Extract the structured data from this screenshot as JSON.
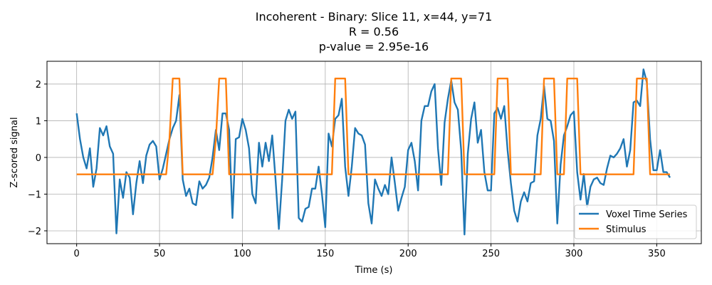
{
  "chart_data": {
    "type": "line",
    "title_lines": [
      "Incoherent - Binary: Slice 11, x=44, y=71",
      "R = 0.56",
      "p-value = 2.95e-16"
    ],
    "xlabel": "Time (s)",
    "ylabel": "Z-scored signal",
    "xlim": [
      -17.9,
      376.9
    ],
    "ylim": [
      -2.35,
      2.62
    ],
    "xticks": [
      0,
      50,
      100,
      150,
      200,
      250,
      300,
      350
    ],
    "yticks": [
      -2,
      -1,
      0,
      1,
      2
    ],
    "grid": true,
    "legend_position": "lower right",
    "series": [
      {
        "name": "Voxel Time Series",
        "color": "#1f77b4",
        "x": [
          0,
          2,
          4,
          6,
          8,
          10,
          12,
          14,
          16,
          18,
          20,
          22,
          24,
          26,
          28,
          30,
          32,
          34,
          36,
          38,
          40,
          42,
          44,
          46,
          48,
          50,
          52,
          54,
          56,
          58,
          60,
          62,
          64,
          66,
          68,
          70,
          72,
          74,
          76,
          78,
          80,
          82,
          84,
          86,
          88,
          90,
          92,
          94,
          96,
          98,
          100,
          102,
          104,
          106,
          108,
          110,
          112,
          114,
          116,
          118,
          120,
          122,
          124,
          126,
          128,
          130,
          132,
          134,
          136,
          138,
          140,
          142,
          144,
          146,
          148,
          150,
          152,
          154,
          156,
          158,
          160,
          162,
          164,
          166,
          168,
          170,
          172,
          174,
          176,
          178,
          180,
          182,
          184,
          186,
          188,
          190,
          192,
          194,
          196,
          198,
          200,
          202,
          204,
          206,
          208,
          210,
          212,
          214,
          216,
          218,
          220,
          222,
          224,
          226,
          228,
          230,
          232,
          234,
          236,
          238,
          240,
          242,
          244,
          246,
          248,
          250,
          252,
          254,
          256,
          258,
          260,
          262,
          264,
          266,
          268,
          270,
          272,
          274,
          276,
          278,
          280,
          282,
          284,
          286,
          288,
          290,
          292,
          294,
          296,
          298,
          300,
          302,
          304,
          306,
          308,
          310,
          312,
          314,
          316,
          318,
          320,
          322,
          324,
          326,
          328,
          330,
          332,
          334,
          336,
          338,
          340,
          342,
          344,
          346,
          348,
          350,
          352,
          354,
          356,
          358
        ],
        "values": [
          1.2,
          0.5,
          0.0,
          -0.3,
          0.25,
          -0.8,
          -0.3,
          0.8,
          0.6,
          0.85,
          0.3,
          0.1,
          -2.07,
          -0.6,
          -1.1,
          -0.4,
          -0.55,
          -1.55,
          -0.7,
          -0.1,
          -0.7,
          0.05,
          0.35,
          0.45,
          0.3,
          -0.6,
          -0.3,
          0.1,
          0.5,
          0.8,
          1.0,
          1.7,
          -0.6,
          -1.05,
          -0.85,
          -1.25,
          -1.3,
          -0.65,
          -0.85,
          -0.75,
          -0.55,
          0.0,
          0.75,
          0.2,
          1.2,
          1.2,
          0.75,
          -1.65,
          0.5,
          0.55,
          1.05,
          0.75,
          0.25,
          -1.0,
          -1.25,
          0.4,
          -0.25,
          0.4,
          -0.1,
          0.6,
          -0.6,
          -1.95,
          -0.6,
          1.0,
          1.3,
          1.05,
          1.25,
          -1.65,
          -1.75,
          -1.4,
          -1.35,
          -0.85,
          -0.85,
          -0.25,
          -1.0,
          -1.9,
          0.65,
          0.3,
          1.05,
          1.15,
          1.6,
          -0.25,
          -1.05,
          -0.25,
          0.8,
          0.65,
          0.6,
          0.35,
          -1.25,
          -1.8,
          -0.6,
          -0.85,
          -1.05,
          -0.75,
          -1.0,
          0.0,
          -0.7,
          -1.45,
          -1.1,
          -0.8,
          0.2,
          0.4,
          -0.1,
          -0.9,
          1.0,
          1.4,
          1.4,
          1.8,
          2.0,
          0.25,
          -0.75,
          0.95,
          1.6,
          2.1,
          1.5,
          1.3,
          0.2,
          -2.1,
          0.1,
          1.05,
          1.5,
          0.4,
          0.75,
          -0.4,
          -0.9,
          -0.9,
          1.2,
          1.35,
          1.05,
          1.4,
          0.2,
          -0.7,
          -1.45,
          -1.75,
          -1.2,
          -0.95,
          -1.2,
          -0.7,
          -0.65,
          0.6,
          1.05,
          1.95,
          1.05,
          1.0,
          0.45,
          -1.8,
          -0.2,
          0.6,
          0.85,
          1.15,
          1.25,
          -0.4,
          -1.15,
          -0.45,
          -1.35,
          -0.8,
          -0.6,
          -0.55,
          -0.7,
          -0.75,
          -0.3,
          0.05,
          0.0,
          0.1,
          0.25,
          0.5,
          -0.25,
          0.2,
          1.5,
          1.55,
          1.4,
          2.4,
          2.05,
          0.5,
          -0.35,
          -0.35,
          0.2,
          -0.4,
          -0.4,
          -0.55
        ]
      },
      {
        "name": "Stimulus",
        "color": "#ff7f0e",
        "x": [
          0,
          54,
          56,
          58,
          62,
          64,
          82,
          84,
          86,
          90,
          92,
          154,
          156,
          158,
          162,
          164,
          224,
          226,
          228,
          232,
          234,
          252,
          254,
          256,
          260,
          262,
          280,
          282,
          284,
          288,
          290,
          294,
          296,
          298,
          302,
          304,
          336,
          338,
          340,
          344,
          346,
          358
        ],
        "values": [
          -0.46,
          -0.46,
          0.5,
          2.15,
          2.15,
          -0.46,
          -0.46,
          0.5,
          2.15,
          2.15,
          -0.46,
          -0.46,
          2.15,
          2.15,
          2.15,
          -0.46,
          -0.46,
          2.15,
          2.15,
          2.15,
          -0.46,
          -0.46,
          2.15,
          2.15,
          2.15,
          -0.46,
          -0.46,
          2.15,
          2.15,
          2.15,
          -0.46,
          -0.46,
          2.15,
          2.15,
          2.15,
          -0.46,
          -0.46,
          2.15,
          2.15,
          2.15,
          -0.46,
          -0.46
        ]
      }
    ]
  }
}
